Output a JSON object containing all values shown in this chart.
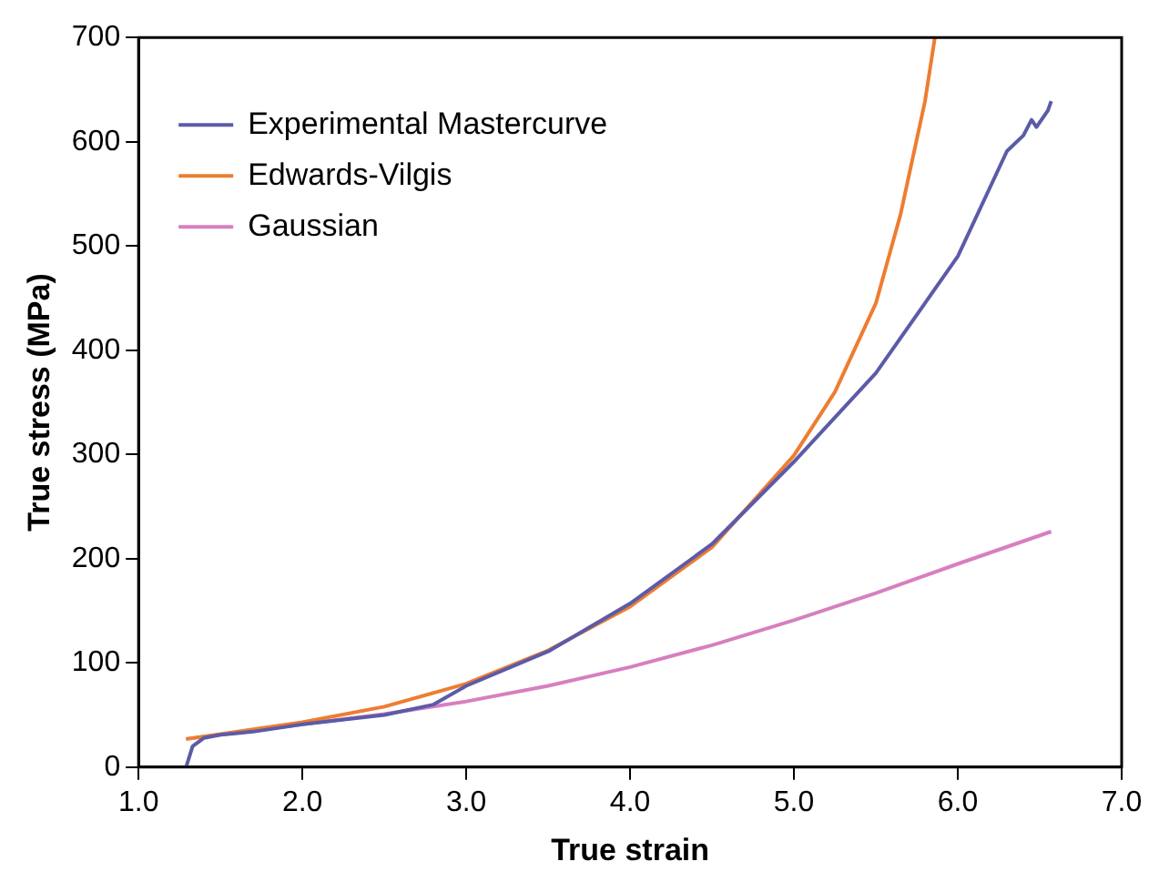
{
  "chart_data": {
    "type": "line",
    "xlabel": "True strain",
    "ylabel": "True stress (MPa)",
    "xlim": [
      1,
      7
    ],
    "xticks": [
      {
        "value": 1,
        "label": "1.0"
      },
      {
        "value": 2,
        "label": "2.0"
      },
      {
        "value": 3,
        "label": "3.0"
      },
      {
        "value": 4,
        "label": "4.0"
      },
      {
        "value": 5,
        "label": "5.0"
      },
      {
        "value": 6,
        "label": "6.0"
      },
      {
        "value": 7,
        "label": "7.0"
      }
    ],
    "ylim": [
      0,
      700
    ],
    "yticks": [
      0,
      100,
      200,
      300,
      400,
      500,
      600,
      700
    ],
    "grid": false,
    "legend": "top left",
    "marker": "none",
    "line_style": "solid",
    "series": [
      {
        "name": "Experimental Mastercurve",
        "color": "#5b5ba8",
        "x": [
          1.29,
          1.33,
          1.4,
          1.5,
          1.7,
          2.0,
          2.5,
          2.8,
          3.0,
          3.5,
          4.0,
          4.5,
          5.0,
          5.5,
          6.0,
          6.3,
          6.4,
          6.45,
          6.48,
          6.55,
          6.57
        ],
        "values": [
          0,
          20,
          28,
          31,
          34,
          41,
          50,
          60,
          78,
          111,
          157,
          214,
          293,
          378,
          490,
          591,
          606,
          621,
          614,
          630,
          639
        ]
      },
      {
        "name": "Edwards-Vilgis",
        "color": "#ed7d31",
        "x": [
          1.29,
          2.0,
          2.5,
          3.0,
          3.5,
          4.0,
          4.5,
          5.0,
          5.25,
          5.5,
          5.65,
          5.8,
          5.86
        ],
        "values": [
          27,
          43,
          58,
          80,
          112,
          154,
          211,
          299,
          360,
          445,
          530,
          639,
          700
        ]
      },
      {
        "name": "Gaussian",
        "color": "#d77fc0",
        "x": [
          1.29,
          2.0,
          2.5,
          3.0,
          3.5,
          4.0,
          4.5,
          5.0,
          5.5,
          6.0,
          6.57
        ],
        "values": [
          27,
          41,
          51,
          63,
          78,
          96,
          117,
          141,
          167,
          195,
          226
        ]
      }
    ]
  }
}
